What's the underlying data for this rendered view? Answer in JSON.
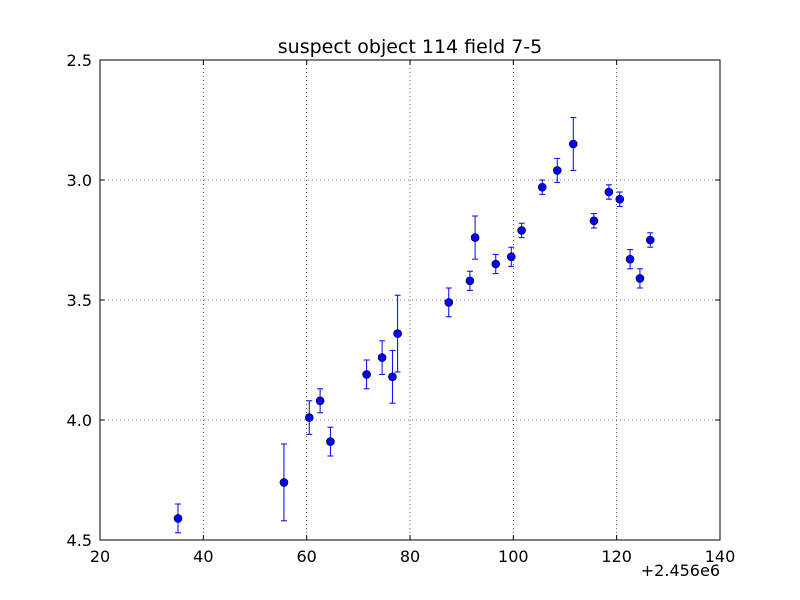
{
  "chart_data": {
    "type": "scatter",
    "title": "suspect object 114 field 7-5",
    "xlabel": "",
    "ylabel": "",
    "xlim": [
      20,
      140
    ],
    "ylim": [
      4.5,
      2.5
    ],
    "y_inverted": true,
    "x_offset_label": "+2.456e6",
    "xticks": [
      20,
      40,
      60,
      80,
      100,
      120,
      140
    ],
    "yticks": [
      2.5,
      3.0,
      3.5,
      4.0,
      4.5
    ],
    "xtick_labels": [
      "20",
      "40",
      "60",
      "80",
      "100",
      "120",
      "140"
    ],
    "ytick_labels": [
      "2.5",
      "3.0",
      "3.5",
      "4.0",
      "4.5"
    ],
    "grid": true,
    "marker_color": "#0000ff",
    "series": [
      {
        "points": [
          {
            "x": 35.1,
            "y": 4.41,
            "err": 0.06
          },
          {
            "x": 55.6,
            "y": 4.26,
            "err": 0.16
          },
          {
            "x": 60.5,
            "y": 3.99,
            "err": 0.07
          },
          {
            "x": 62.6,
            "y": 3.92,
            "err": 0.05
          },
          {
            "x": 64.6,
            "y": 4.09,
            "err": 0.06
          },
          {
            "x": 71.6,
            "y": 3.81,
            "err": 0.06
          },
          {
            "x": 74.6,
            "y": 3.74,
            "err": 0.07
          },
          {
            "x": 76.6,
            "y": 3.82,
            "err": 0.11
          },
          {
            "x": 77.6,
            "y": 3.64,
            "err": 0.16
          },
          {
            "x": 87.5,
            "y": 3.51,
            "err": 0.06
          },
          {
            "x": 91.6,
            "y": 3.42,
            "err": 0.04
          },
          {
            "x": 92.6,
            "y": 3.24,
            "err": 0.09
          },
          {
            "x": 96.6,
            "y": 3.35,
            "err": 0.04
          },
          {
            "x": 99.6,
            "y": 3.32,
            "err": 0.04
          },
          {
            "x": 101.6,
            "y": 3.21,
            "err": 0.03
          },
          {
            "x": 105.6,
            "y": 3.03,
            "err": 0.03
          },
          {
            "x": 108.5,
            "y": 2.96,
            "err": 0.05
          },
          {
            "x": 111.6,
            "y": 2.85,
            "err": 0.11
          },
          {
            "x": 115.6,
            "y": 3.17,
            "err": 0.03
          },
          {
            "x": 118.5,
            "y": 3.05,
            "err": 0.03
          },
          {
            "x": 120.6,
            "y": 3.08,
            "err": 0.03
          },
          {
            "x": 122.6,
            "y": 3.33,
            "err": 0.04
          },
          {
            "x": 124.5,
            "y": 3.41,
            "err": 0.04
          },
          {
            "x": 126.5,
            "y": 3.25,
            "err": 0.03
          }
        ]
      }
    ]
  }
}
